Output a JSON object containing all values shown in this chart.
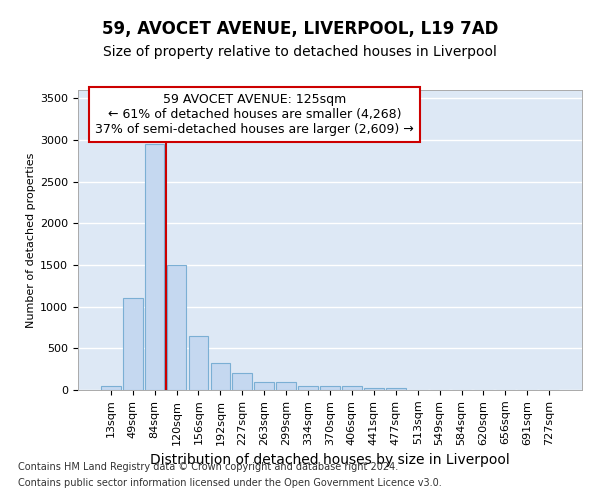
{
  "title1": "59, AVOCET AVENUE, LIVERPOOL, L19 7AD",
  "title2": "Size of property relative to detached houses in Liverpool",
  "xlabel": "Distribution of detached houses by size in Liverpool",
  "ylabel": "Number of detached properties",
  "categories": [
    "13sqm",
    "49sqm",
    "84sqm",
    "120sqm",
    "156sqm",
    "192sqm",
    "227sqm",
    "263sqm",
    "299sqm",
    "334sqm",
    "370sqm",
    "406sqm",
    "441sqm",
    "477sqm",
    "513sqm",
    "549sqm",
    "584sqm",
    "620sqm",
    "656sqm",
    "691sqm",
    "727sqm"
  ],
  "values": [
    50,
    1100,
    2950,
    1500,
    650,
    330,
    200,
    100,
    100,
    50,
    50,
    50,
    20,
    20,
    5,
    3,
    2,
    1,
    0,
    0,
    0
  ],
  "bar_color": "#c5d8f0",
  "bar_edgecolor": "#7bafd4",
  "vline_color": "#cc0000",
  "vline_pos": 3.0,
  "annotation_text": "59 AVOCET AVENUE: 125sqm\n← 61% of detached houses are smaller (4,268)\n37% of semi-detached houses are larger (2,609) →",
  "annotation_box_facecolor": "#ffffff",
  "annotation_box_edgecolor": "#cc0000",
  "ylim": [
    0,
    3600
  ],
  "yticks": [
    0,
    500,
    1000,
    1500,
    2000,
    2500,
    3000,
    3500
  ],
  "bg_color": "#ffffff",
  "plot_bg_color": "#dde8f5",
  "grid_color": "#ffffff",
  "footnote1": "Contains HM Land Registry data © Crown copyright and database right 2024.",
  "footnote2": "Contains public sector information licensed under the Open Government Licence v3.0.",
  "title1_fontsize": 12,
  "title2_fontsize": 10,
  "xlabel_fontsize": 10,
  "ylabel_fontsize": 8,
  "tick_fontsize": 8,
  "annotation_fontsize": 9,
  "footnote_fontsize": 7
}
